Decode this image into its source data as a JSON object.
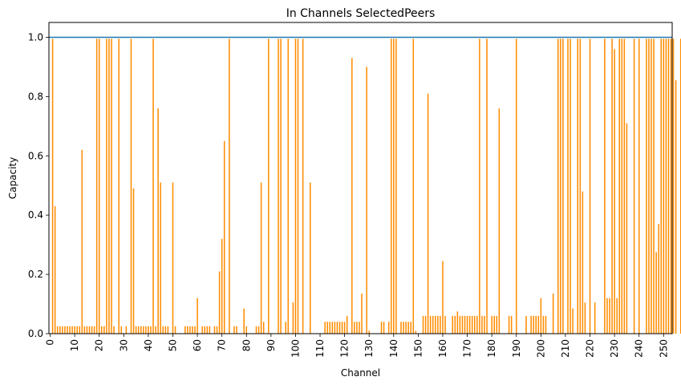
{
  "chart_data": {
    "type": "bar",
    "title": "In Channels SelectedPeers",
    "xlabel": "Channel",
    "ylabel": "Capacity",
    "xlim": [
      -0.5,
      253.5
    ],
    "ylim": [
      0,
      1.05
    ],
    "grid": false,
    "legend": "none",
    "x_ticks": [
      0,
      10,
      20,
      30,
      40,
      50,
      60,
      70,
      80,
      90,
      100,
      110,
      120,
      130,
      140,
      150,
      160,
      170,
      180,
      190,
      200,
      210,
      220,
      230,
      240,
      250
    ],
    "y_ticks": [
      "0.0",
      "0.2",
      "0.4",
      "0.6",
      "0.8",
      "1.0"
    ],
    "reference_line": {
      "y": 1.0,
      "color": "#1f77b4"
    },
    "bar_color": "#ff8c00",
    "values": [
      0,
      0.995,
      0.43,
      0.025,
      0.025,
      0.025,
      0.025,
      0.025,
      0.025,
      0.025,
      0.025,
      0.025,
      0.025,
      0.62,
      0.025,
      0.025,
      0.025,
      0.025,
      0.025,
      0.995,
      0.995,
      0.025,
      0.025,
      0.995,
      0.995,
      0.995,
      0.025,
      0,
      0.995,
      0.025,
      0,
      0.025,
      0,
      0.995,
      0.49,
      0.025,
      0.025,
      0.025,
      0.025,
      0.025,
      0.025,
      0.025,
      0.995,
      0.025,
      0.76,
      0.51,
      0.025,
      0.025,
      0.025,
      0,
      0.51,
      0.025,
      0,
      0,
      0,
      0.025,
      0.025,
      0.025,
      0.025,
      0.025,
      0.12,
      0,
      0.025,
      0.025,
      0.025,
      0.025,
      0,
      0.025,
      0.025,
      0.21,
      0.32,
      0.65,
      0,
      0.995,
      0,
      0.025,
      0.025,
      0,
      0,
      0.085,
      0.025,
      0,
      0,
      0,
      0.025,
      0.025,
      0.51,
      0.04,
      0,
      0.995,
      0,
      0,
      0,
      0.995,
      0.995,
      0,
      0.04,
      0.995,
      0,
      0.105,
      0.995,
      0.995,
      0,
      0.995,
      0,
      0,
      0.51,
      0,
      0,
      0,
      0,
      0,
      0.04,
      0.04,
      0.04,
      0.04,
      0.04,
      0.04,
      0.04,
      0.04,
      0.04,
      0.06,
      0,
      0.93,
      0.04,
      0.04,
      0.04,
      0.135,
      0,
      0.9,
      0.01,
      0,
      0,
      0,
      0,
      0.04,
      0.04,
      0,
      0.04,
      0.995,
      0.995,
      0.995,
      0,
      0.04,
      0.04,
      0.04,
      0.04,
      0.04,
      0.995,
      0.01,
      0,
      0,
      0.06,
      0.06,
      0.81,
      0.06,
      0.06,
      0.06,
      0.06,
      0.06,
      0.245,
      0.06,
      0,
      0,
      0.06,
      0.06,
      0.075,
      0.06,
      0.06,
      0.06,
      0.06,
      0.06,
      0.06,
      0.06,
      0.06,
      0.995,
      0.06,
      0.06,
      0.995,
      0,
      0.06,
      0.06,
      0.06,
      0.76,
      0,
      0,
      0,
      0.06,
      0.06,
      0,
      0.995,
      0,
      0,
      0,
      0.06,
      0,
      0.06,
      0.06,
      0.06,
      0.06,
      0.12,
      0.06,
      0.06,
      0,
      0,
      0.135,
      0,
      0.995,
      0.995,
      0.995,
      0,
      0.995,
      0.995,
      0.085,
      0,
      0.995,
      0.995,
      0.48,
      0.105,
      0,
      0.995,
      0,
      0.105,
      0,
      0,
      0,
      0.995,
      0.12,
      0.12,
      0.995,
      0.96,
      0.12,
      0.995,
      0.995,
      0.995,
      0.71,
      0,
      0,
      0.995,
      0,
      0.995,
      0,
      0,
      0.995,
      0.995,
      0.995,
      0.995,
      0.275,
      0.37,
      0.995,
      0.995,
      0.995,
      0.995,
      0.995,
      0.995,
      0.855,
      0,
      0.995
    ]
  }
}
